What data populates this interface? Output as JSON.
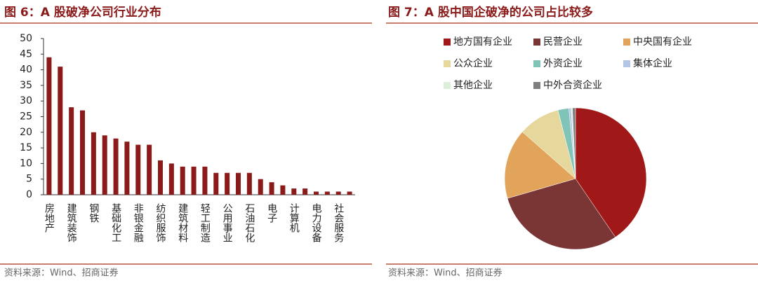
{
  "chart_data": [
    {
      "type": "bar",
      "title": "图 6：A 股破净公司行业分布",
      "source": "资料来源：Wind、招商证券",
      "categories": [
        "房地产",
        null,
        "建筑装饰",
        null,
        "钢铁",
        null,
        "基础化工",
        null,
        "非银金融",
        null,
        "纺织服饰",
        null,
        "建筑材料",
        null,
        "轻工制造",
        null,
        "公用事业",
        null,
        "石油石化",
        null,
        "电子",
        null,
        "计算机",
        null,
        "电力设备",
        null,
        "社会服务",
        null
      ],
      "values": [
        44,
        41,
        28,
        27,
        20,
        19,
        18,
        17,
        16,
        16,
        11,
        10,
        9,
        9,
        9,
        7,
        7,
        7,
        7,
        5,
        4,
        3,
        2,
        2,
        1,
        1,
        1,
        1
      ],
      "color": "#8b1a1a",
      "ylim": [
        0,
        50
      ],
      "yticks": [
        0,
        5,
        10,
        15,
        20,
        25,
        30,
        35,
        40,
        45,
        50
      ]
    },
    {
      "type": "pie",
      "title": "图 7：A 股中国企破净的公司占比较多",
      "source": "资料来源：Wind、招商证券",
      "categories": [
        "地方国有企业",
        "民营企业",
        "中央国有企业",
        "公众企业",
        "外资企业",
        "集体企业",
        "其他企业",
        "中外合资企业"
      ],
      "values": [
        40.5,
        30,
        16,
        9.5,
        2.5,
        0.5,
        0.3,
        0.7
      ],
      "colors": [
        "#a01818",
        "#7a3535",
        "#e2a35a",
        "#e6d89c",
        "#7fc4b6",
        "#b3c6e6",
        "#dcefd8",
        "#7f7f7f"
      ]
    }
  ]
}
